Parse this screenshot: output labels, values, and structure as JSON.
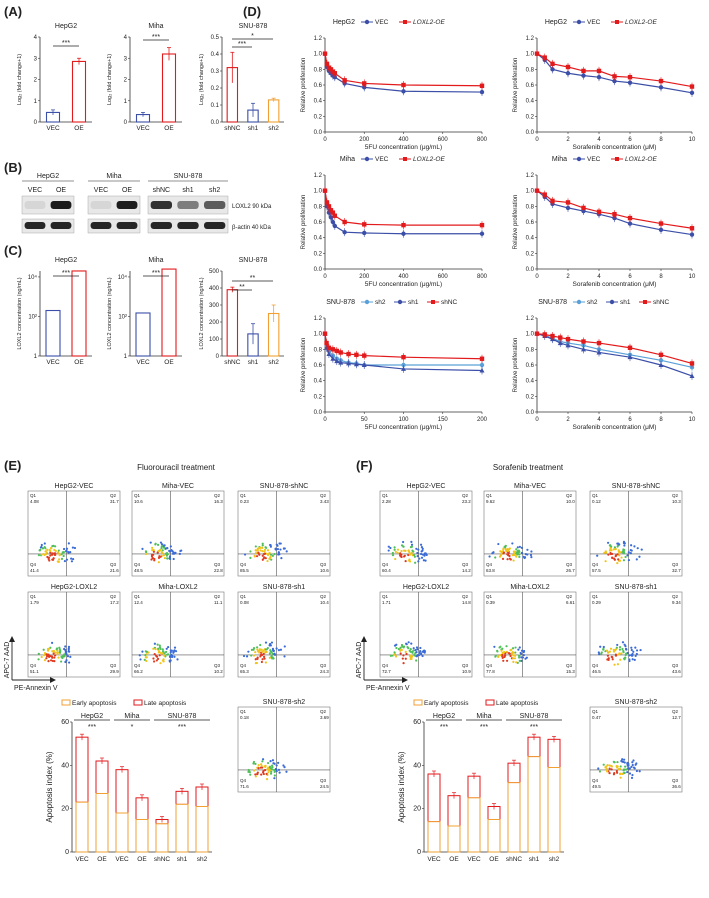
{
  "colors": {
    "red": "#e31a1c",
    "blue": "#3b4fa8",
    "lightblue": "#5aa0d8",
    "orange": "#f2a033",
    "grey": "#555555"
  },
  "panel_labels": {
    "A": "(A)",
    "B": "(B)",
    "C": "(C)",
    "D": "(D)",
    "E": "(E)",
    "F": "(F)"
  },
  "panelA": {
    "hepg2": {
      "title": "HepG2",
      "ylabel": "Log₂ (fold change+1)",
      "yticks": [
        "0",
        "1",
        "2",
        "3",
        "4"
      ],
      "categories": [
        "VEC",
        "OE"
      ],
      "sig": "***"
    },
    "miha": {
      "title": "Miha",
      "ylabel": "Log₂ (fold change+1)",
      "yticks": [
        "0",
        "1",
        "2",
        "3",
        "4"
      ],
      "categories": [
        "VEC",
        "OE"
      ],
      "sig": "***"
    },
    "snu": {
      "title": "SNU-878",
      "ylabel": "Log₂ (fold change+1)",
      "yticks": [
        "0.0",
        "0.1",
        "0.2",
        "0.3",
        "0.4",
        "0.5"
      ],
      "categories": [
        "shNC",
        "sh1",
        "sh2"
      ],
      "sig1": "***",
      "sig2": "*"
    }
  },
  "panelB": {
    "hepg2": {
      "title": "HepG2",
      "lanes": [
        "VEC",
        "OE"
      ]
    },
    "miha": {
      "title": "Miha",
      "lanes": [
        "VEC",
        "OE"
      ]
    },
    "snu": {
      "title": "SNU-878",
      "lanes": [
        "shNC",
        "sh1",
        "sh2"
      ]
    },
    "labels": [
      "LOXL2 90 kDa",
      "β-actin 40 kDa"
    ]
  },
  "panelC": {
    "hepg2": {
      "title": "HepG2",
      "ylabel": "LOXL2 concentration (ng/mL)",
      "yticks": [
        "1",
        "10²",
        "10⁴"
      ],
      "categories": [
        "VEC",
        "OE"
      ],
      "sig": "***"
    },
    "miha": {
      "title": "Miha",
      "ylabel": "LOXL2 concentration (ng/mL)",
      "yticks": [
        "1",
        "10²",
        "10⁴"
      ],
      "categories": [
        "VEC",
        "OE"
      ],
      "sig": "***"
    },
    "snu": {
      "title": "SNU-878",
      "ylabel": "LOXL2 concentration (ng/mL)",
      "yticks": [
        "0",
        "100",
        "200",
        "300",
        "400",
        "500"
      ],
      "categories": [
        "shNC",
        "sh1",
        "sh2"
      ],
      "sig1": "**",
      "sig2": "**"
    }
  },
  "panelD": {
    "ylabel": "Relative proliferation",
    "yticks": [
      "0.0",
      "0.2",
      "0.4",
      "0.6",
      "0.8",
      "1.0",
      "1.2"
    ],
    "row1": {
      "title": "HepG2",
      "legend": [
        "VEC",
        "LOXL2-OE"
      ]
    },
    "row2": {
      "title": "Miha",
      "legend": [
        "VEC",
        "LOXL2-OE"
      ]
    },
    "row3": {
      "title": "SNU-878",
      "legend": [
        "sh2",
        "sh1",
        "shNC"
      ]
    },
    "xlabel_5fu": "5FU concentration (μg/mL)",
    "xlabel_sor": "Sorafenib concentration (μM)",
    "xticks_5fu_a": [
      "0",
      "200",
      "400",
      "600",
      "800"
    ],
    "xticks_5fu_b": [
      "0",
      "50",
      "100",
      "150",
      "200"
    ],
    "xticks_sor": [
      "0",
      "2",
      "4",
      "6",
      "8",
      "10"
    ]
  },
  "panelE": {
    "title": "Fluorouracil treatment",
    "flow": [
      {
        "name": "HepG2-VEC",
        "q": [
          "4.08",
          "31.7",
          "41.4",
          "21.6"
        ]
      },
      {
        "name": "Miha-VEC",
        "q": [
          "10.6",
          "16.3",
          "48.5",
          "22.8"
        ]
      },
      {
        "name": "SNU-878-shNC",
        "q": [
          "0.23",
          "3.43",
          "85.5",
          "10.6"
        ]
      },
      {
        "name": "HepG2-LOXL2",
        "q": [
          "1.79",
          "17.2",
          "51.1",
          "29.9"
        ]
      },
      {
        "name": "Miha-LOXL2",
        "q": [
          "12.4",
          "11.1",
          "66.2",
          "10.2"
        ]
      },
      {
        "name": "SNU-878-sh1",
        "q": [
          "0.08",
          "10.4",
          "65.3",
          "24.3"
        ]
      },
      {
        "name": "SNU-878-sh2",
        "q": [
          "0.18",
          "3.69",
          "71.6",
          "24.5"
        ]
      }
    ],
    "axis_y": "APC-7 AAD",
    "axis_x": "PE-Annexin V",
    "legend": [
      "Early apoptosis",
      "Late apoptosis"
    ],
    "ylabel": "Apoptosis index (%)",
    "yticks": [
      "0",
      "20",
      "40",
      "60"
    ],
    "categories": [
      "VEC",
      "OE",
      "VEC",
      "OE",
      "shNC",
      "sh1",
      "sh2"
    ],
    "groups": [
      "HepG2",
      "Miha",
      "SNU-878"
    ],
    "sig": [
      "***",
      "*",
      "***"
    ]
  },
  "panelF": {
    "title": "Sorafenib treatment",
    "flow": [
      {
        "name": "HepG2-VEC",
        "q": [
          "2.28",
          "23.2",
          "60.4",
          "14.2"
        ]
      },
      {
        "name": "Miha-VEC",
        "q": [
          "9.62",
          "10.0",
          "63.8",
          "26.7"
        ]
      },
      {
        "name": "SNU-878-shNC",
        "q": [
          "0.12",
          "10.3",
          "57.5",
          "32.7"
        ]
      },
      {
        "name": "HepG2-LOXL2",
        "q": [
          "1.71",
          "14.8",
          "72.7",
          "10.9"
        ]
      },
      {
        "name": "Miha-LOXL2",
        "q": [
          "0.39",
          "6.61",
          "77.8",
          "15.3"
        ]
      },
      {
        "name": "SNU-878-sh1",
        "q": [
          "0.29",
          "9.34",
          "46.5",
          "43.6"
        ]
      },
      {
        "name": "SNU-878-sh2",
        "q": [
          "0.47",
          "12.7",
          "49.5",
          "36.6"
        ]
      }
    ],
    "axis_y": "APC-7 AAD",
    "axis_x": "PE-Annexin V",
    "legend": [
      "Early apoptosis",
      "Late apoptosis"
    ],
    "ylabel": "Apoptosis index (%)",
    "yticks": [
      "0",
      "20",
      "40",
      "60"
    ],
    "categories": [
      "VEC",
      "OE",
      "VEC",
      "OE",
      "shNC",
      "sh1",
      "sh2"
    ],
    "groups": [
      "HepG2",
      "Miha",
      "SNU-878"
    ],
    "sig": [
      "***",
      "***",
      "***"
    ]
  },
  "chart_data": [
    {
      "type": "bar",
      "id": "A-HepG2",
      "title": "HepG2",
      "ylabel": "Log2 (fold change+1)",
      "categories": [
        "VEC",
        "OE"
      ],
      "values": [
        0.45,
        2.85
      ],
      "errors": [
        0.12,
        0.15
      ],
      "ylim": [
        0,
        4
      ]
    },
    {
      "type": "bar",
      "id": "A-Miha",
      "title": "Miha",
      "ylabel": "Log2 (fold change+1)",
      "categories": [
        "VEC",
        "OE"
      ],
      "values": [
        0.35,
        3.2
      ],
      "errors": [
        0.1,
        0.3
      ],
      "ylim": [
        0,
        4
      ]
    },
    {
      "type": "bar",
      "id": "A-SNU",
      "title": "SNU-878",
      "ylabel": "Log2 (fold change+1)",
      "categories": [
        "shNC",
        "sh1",
        "sh2"
      ],
      "values": [
        0.32,
        0.07,
        0.13
      ],
      "errors": [
        0.09,
        0.04,
        0.01
      ],
      "ylim": [
        0,
        0.5
      ]
    },
    {
      "type": "bar",
      "id": "C-HepG2",
      "title": "HepG2",
      "ylabel": "LOXL2 concentration (ng/mL)",
      "categories": [
        "VEC",
        "OE"
      ],
      "values": [
        200,
        20000
      ],
      "scale": "log"
    },
    {
      "type": "bar",
      "id": "C-Miha",
      "title": "Miha",
      "ylabel": "LOXL2 concentration (ng/mL)",
      "categories": [
        "VEC",
        "OE"
      ],
      "values": [
        150,
        25000
      ],
      "scale": "log"
    },
    {
      "type": "bar",
      "id": "C-SNU",
      "title": "SNU-878",
      "ylabel": "LOXL2 concentration (ng/mL)",
      "categories": [
        "shNC",
        "sh1",
        "sh2"
      ],
      "values": [
        390,
        130,
        250
      ],
      "errors": [
        15,
        60,
        50
      ],
      "ylim": [
        0,
        500
      ]
    },
    {
      "type": "line",
      "id": "D-HepG2-5FU",
      "title": "HepG2",
      "xlabel": "5FU concentration (μg/mL)",
      "ylabel": "Relative proliferation",
      "ylim": [
        0,
        1.2
      ],
      "x": [
        0,
        10,
        20,
        30,
        40,
        50,
        100,
        200,
        400,
        800
      ],
      "series": [
        {
          "name": "VEC",
          "values": [
            1.0,
            0.83,
            0.78,
            0.75,
            0.72,
            0.7,
            0.62,
            0.57,
            0.52,
            0.51
          ]
        },
        {
          "name": "LOXL2-OE",
          "values": [
            1.0,
            0.87,
            0.82,
            0.8,
            0.77,
            0.75,
            0.66,
            0.62,
            0.6,
            0.59
          ]
        }
      ]
    },
    {
      "type": "line",
      "id": "D-HepG2-Sor",
      "title": "HepG2",
      "xlabel": "Sorafenib concentration (μM)",
      "ylabel": "Relative proliferation",
      "ylim": [
        0,
        1.2
      ],
      "x": [
        0,
        0.5,
        1,
        2,
        3,
        4,
        5,
        6,
        8,
        10
      ],
      "series": [
        {
          "name": "VEC",
          "values": [
            1.0,
            0.92,
            0.8,
            0.75,
            0.72,
            0.7,
            0.65,
            0.63,
            0.57,
            0.5
          ]
        },
        {
          "name": "LOXL2-OE",
          "values": [
            1.0,
            0.95,
            0.87,
            0.83,
            0.78,
            0.78,
            0.71,
            0.7,
            0.65,
            0.58
          ]
        }
      ]
    },
    {
      "type": "line",
      "id": "D-Miha-5FU",
      "title": "Miha",
      "xlabel": "5FU concentration (μg/mL)",
      "ylabel": "Relative proliferation",
      "ylim": [
        0,
        1.2
      ],
      "x": [
        0,
        10,
        20,
        30,
        40,
        50,
        100,
        200,
        400,
        800
      ],
      "series": [
        {
          "name": "VEC",
          "values": [
            1.0,
            0.8,
            0.72,
            0.66,
            0.6,
            0.55,
            0.47,
            0.46,
            0.45,
            0.45
          ]
        },
        {
          "name": "LOXL2-OE",
          "values": [
            1.0,
            0.85,
            0.8,
            0.75,
            0.72,
            0.68,
            0.6,
            0.57,
            0.56,
            0.56
          ]
        }
      ]
    },
    {
      "type": "line",
      "id": "D-Miha-Sor",
      "title": "Miha",
      "xlabel": "Sorafenib concentration (μM)",
      "ylabel": "Relative proliferation",
      "ylim": [
        0,
        1.2
      ],
      "x": [
        0,
        0.5,
        1,
        2,
        3,
        4,
        5,
        6,
        8,
        10
      ],
      "series": [
        {
          "name": "VEC",
          "values": [
            1.0,
            0.92,
            0.83,
            0.78,
            0.74,
            0.7,
            0.65,
            0.58,
            0.5,
            0.44
          ]
        },
        {
          "name": "LOXL2-OE",
          "values": [
            1.0,
            0.95,
            0.87,
            0.85,
            0.78,
            0.73,
            0.7,
            0.65,
            0.58,
            0.52
          ]
        }
      ]
    },
    {
      "type": "line",
      "id": "D-SNU-5FU",
      "title": "SNU-878",
      "xlabel": "5FU concentration (μg/mL)",
      "ylabel": "Relative proliferation",
      "ylim": [
        0,
        1.2
      ],
      "x": [
        0,
        2,
        5,
        10,
        15,
        20,
        30,
        40,
        50,
        100,
        200
      ],
      "series": [
        {
          "name": "sh2",
          "values": [
            1.0,
            0.85,
            0.78,
            0.72,
            0.68,
            0.66,
            0.63,
            0.62,
            0.6,
            0.6,
            0.6
          ]
        },
        {
          "name": "sh1",
          "values": [
            1.0,
            0.82,
            0.74,
            0.68,
            0.65,
            0.63,
            0.62,
            0.61,
            0.6,
            0.55,
            0.53
          ]
        },
        {
          "name": "shNC",
          "values": [
            1.0,
            0.88,
            0.82,
            0.8,
            0.78,
            0.76,
            0.74,
            0.73,
            0.72,
            0.7,
            0.68
          ]
        }
      ]
    },
    {
      "type": "line",
      "id": "D-SNU-Sor",
      "title": "SNU-878",
      "xlabel": "Sorafenib concentration (μM)",
      "ylabel": "Relative proliferation",
      "ylim": [
        0,
        1.2
      ],
      "x": [
        0,
        0.5,
        1,
        1.5,
        2,
        3,
        4,
        6,
        8,
        10
      ],
      "series": [
        {
          "name": "sh2",
          "values": [
            1.0,
            0.98,
            0.94,
            0.9,
            0.88,
            0.85,
            0.8,
            0.73,
            0.66,
            0.57
          ]
        },
        {
          "name": "sh1",
          "values": [
            1.0,
            0.97,
            0.93,
            0.88,
            0.85,
            0.8,
            0.76,
            0.7,
            0.6,
            0.46
          ]
        },
        {
          "name": "shNC",
          "values": [
            1.0,
            0.99,
            0.97,
            0.95,
            0.93,
            0.9,
            0.88,
            0.82,
            0.73,
            0.62
          ]
        }
      ]
    },
    {
      "type": "bar",
      "id": "E-apoptosis",
      "title": "Fluorouracil treatment",
      "ylabel": "Apoptosis index (%)",
      "categories": [
        "VEC",
        "OE",
        "VEC",
        "OE",
        "shNC",
        "sh1",
        "sh2"
      ],
      "ylim": [
        0,
        60
      ],
      "series": [
        {
          "name": "Early apoptosis",
          "values": [
            23,
            27,
            18,
            15,
            13,
            22,
            21
          ]
        },
        {
          "name": "Late apoptosis",
          "values": [
            30,
            15,
            20,
            10,
            2,
            6,
            9
          ]
        }
      ]
    },
    {
      "type": "bar",
      "id": "F-apoptosis",
      "title": "Sorafenib treatment",
      "ylabel": "Apoptosis index (%)",
      "categories": [
        "VEC",
        "OE",
        "VEC",
        "OE",
        "shNC",
        "sh1",
        "sh2"
      ],
      "ylim": [
        0,
        60
      ],
      "series": [
        {
          "name": "Early apoptosis",
          "values": [
            14,
            12,
            25,
            15,
            32,
            44,
            39
          ]
        },
        {
          "name": "Late apoptosis",
          "values": [
            22,
            14,
            10,
            6,
            9,
            9,
            13
          ]
        }
      ]
    }
  ]
}
